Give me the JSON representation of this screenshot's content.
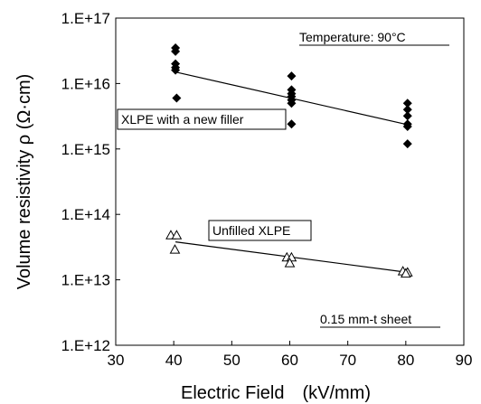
{
  "chart_data": {
    "type": "scatter",
    "xlabel": "Electric Field (kV/mm)",
    "ylabel": "Volume resistivity ρ (Ω·cm)",
    "xlim": [
      30,
      90
    ],
    "ylim_log10": [
      12,
      17
    ],
    "y_scale": "log",
    "grid": false,
    "x_ticks": [
      "30",
      "40",
      "50",
      "60",
      "70",
      "80",
      "90"
    ],
    "y_ticks": [
      "1.E+12",
      "1.E+13",
      "1.E+14",
      "1.E+15",
      "1.E+16",
      "1.E+17"
    ],
    "annotations": {
      "temperature": "Temperature: 90°C",
      "sheet": "0.15 mm-t sheet"
    },
    "series": [
      {
        "name": "XLPE with a new filler",
        "marker": "filled-diamond",
        "points": [
          [
            40.3,
            3.5e+16
          ],
          [
            40.3,
            3.1e+16
          ],
          [
            40.3,
            2e+16
          ],
          [
            40.3,
            1.75e+16
          ],
          [
            40.3,
            1.6e+16
          ],
          [
            40.5,
            6000000000000000.0
          ],
          [
            60.3,
            1.3e+16
          ],
          [
            60.3,
            8000000000000000.0
          ],
          [
            60.3,
            7000000000000000.0
          ],
          [
            60.3,
            6300000000000000.0
          ],
          [
            60.3,
            5600000000000000.0
          ],
          [
            60.3,
            5000000000000000.0
          ],
          [
            60.3,
            2400000000000000.0
          ],
          [
            80.3,
            5000000000000000.0
          ],
          [
            80.3,
            4000000000000000.0
          ],
          [
            80.3,
            3200000000000000.0
          ],
          [
            80.3,
            2400000000000000.0
          ],
          [
            80.3,
            2200000000000000.0
          ],
          [
            80.3,
            1200000000000000.0
          ]
        ],
        "trend": [
          [
            40.3,
            1.5e+16
          ],
          [
            80.3,
            2350000000000000.0
          ]
        ]
      },
      {
        "name": "Unfilled XLPE",
        "marker": "open-triangle",
        "points": [
          [
            39.5,
            48000000000000.0
          ],
          [
            40.5,
            48000000000000.0
          ],
          [
            40.2,
            29000000000000.0
          ],
          [
            59.5,
            22000000000000.0
          ],
          [
            60.3,
            22000000000000.0
          ],
          [
            60.0,
            18000000000000.0
          ],
          [
            79.5,
            13500000000000.0
          ],
          [
            80.3,
            13000000000000.0
          ],
          [
            80.0,
            12500000000000.0
          ]
        ],
        "trend": [
          [
            40.3,
            38000000000000.0
          ],
          [
            80.3,
            13000000000000.0
          ]
        ]
      }
    ]
  }
}
